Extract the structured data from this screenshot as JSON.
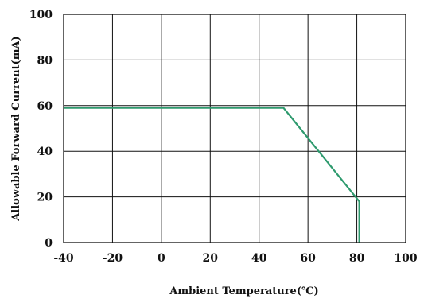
{
  "chart_data": {
    "type": "line",
    "xlabel": "Ambient Temperature(℃)",
    "ylabel": "Allowable Forward Current(mA)",
    "xlim": [
      -40,
      100
    ],
    "ylim": [
      0,
      100
    ],
    "x_ticks": [
      -40,
      -20,
      0,
      20,
      40,
      60,
      80,
      100
    ],
    "y_ticks": [
      0,
      20,
      40,
      60,
      80,
      100
    ],
    "x_tick_labels": [
      "-40",
      "-20",
      "0",
      "20",
      "40",
      "60",
      "80",
      "100"
    ],
    "y_tick_labels": [
      "0",
      "20",
      "40",
      "60",
      "80",
      "100"
    ],
    "grid": true,
    "series": [
      {
        "color": "#2e9a6e",
        "x": [
          -40,
          50,
          81,
          81
        ],
        "y": [
          59,
          59,
          18,
          0
        ]
      }
    ]
  }
}
